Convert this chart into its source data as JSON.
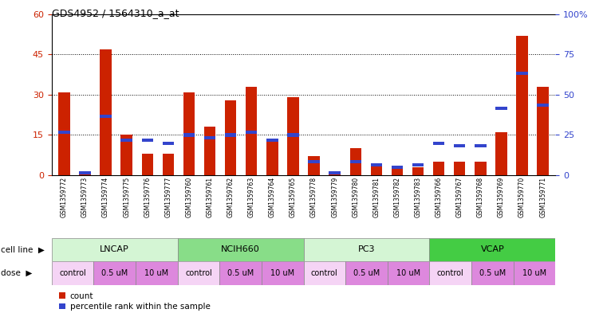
{
  "title": "GDS4952 / 1564310_a_at",
  "samples": [
    "GSM1359772",
    "GSM1359773",
    "GSM1359774",
    "GSM1359775",
    "GSM1359776",
    "GSM1359777",
    "GSM1359760",
    "GSM1359761",
    "GSM1359762",
    "GSM1359763",
    "GSM1359764",
    "GSM1359765",
    "GSM1359778",
    "GSM1359779",
    "GSM1359780",
    "GSM1359781",
    "GSM1359782",
    "GSM1359783",
    "GSM1359766",
    "GSM1359767",
    "GSM1359768",
    "GSM1359769",
    "GSM1359770",
    "GSM1359771"
  ],
  "red_values": [
    31,
    1,
    47,
    15,
    8,
    8,
    31,
    18,
    28,
    33,
    13,
    29,
    7,
    1,
    10,
    4,
    3,
    3,
    5,
    5,
    5,
    16,
    52,
    33
  ],
  "blue_values": [
    16,
    1,
    22,
    13,
    13,
    12,
    15,
    14,
    15,
    16,
    13,
    15,
    5,
    1,
    5,
    4,
    3,
    4,
    12,
    11,
    11,
    25,
    38,
    26
  ],
  "cell_lines": [
    {
      "label": "LNCAP",
      "start": 0,
      "end": 6,
      "color": "#d4f5d4"
    },
    {
      "label": "NCIH660",
      "start": 6,
      "end": 12,
      "color": "#88dd88"
    },
    {
      "label": "PC3",
      "start": 12,
      "end": 18,
      "color": "#d4f5d4"
    },
    {
      "label": "VCAP",
      "start": 18,
      "end": 24,
      "color": "#44cc44"
    }
  ],
  "doses": [
    {
      "label": "control",
      "start": 0,
      "end": 2,
      "color": "#f5d4f5"
    },
    {
      "label": "0.5 uM",
      "start": 2,
      "end": 4,
      "color": "#dd88dd"
    },
    {
      "label": "10 uM",
      "start": 4,
      "end": 6,
      "color": "#dd88dd"
    },
    {
      "label": "control",
      "start": 6,
      "end": 8,
      "color": "#f5d4f5"
    },
    {
      "label": "0.5 uM",
      "start": 8,
      "end": 10,
      "color": "#dd88dd"
    },
    {
      "label": "10 uM",
      "start": 10,
      "end": 12,
      "color": "#dd88dd"
    },
    {
      "label": "control",
      "start": 12,
      "end": 14,
      "color": "#f5d4f5"
    },
    {
      "label": "0.5 uM",
      "start": 14,
      "end": 16,
      "color": "#dd88dd"
    },
    {
      "label": "10 uM",
      "start": 16,
      "end": 18,
      "color": "#dd88dd"
    },
    {
      "label": "control",
      "start": 18,
      "end": 20,
      "color": "#f5d4f5"
    },
    {
      "label": "0.5 uM",
      "start": 20,
      "end": 22,
      "color": "#dd88dd"
    },
    {
      "label": "10 uM",
      "start": 22,
      "end": 24,
      "color": "#dd88dd"
    }
  ],
  "ylim_left": [
    0,
    60
  ],
  "ylim_right": [
    0,
    100
  ],
  "yticks_left": [
    0,
    15,
    30,
    45,
    60
  ],
  "yticks_right": [
    0,
    25,
    50,
    75,
    100
  ],
  "bar_color_red": "#cc2200",
  "bar_color_blue": "#3344cc",
  "bar_width": 0.55,
  "blue_bar_height": 1.2,
  "left_axis_color": "#cc2200",
  "right_axis_color": "#3344cc",
  "sample_bg_color": "#c8c8c8",
  "fig_bg_color": "#ffffff"
}
